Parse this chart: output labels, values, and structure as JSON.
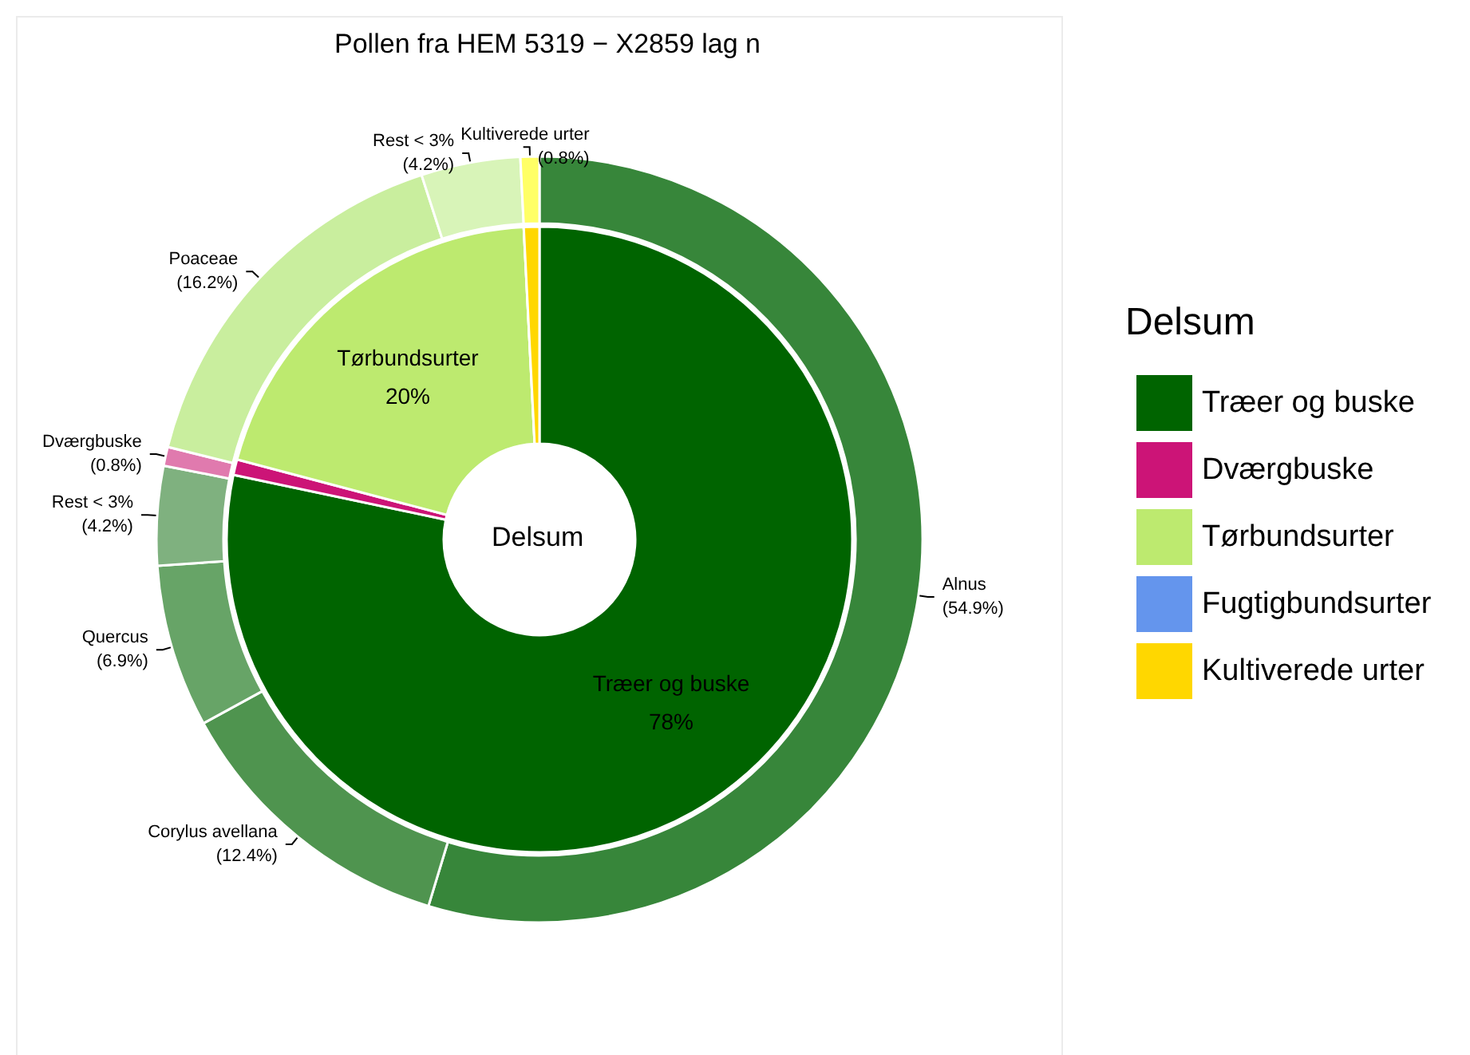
{
  "chart_data": [
    {
      "type": "donut",
      "title": "Pollen fra HEM 5319 − X2859 lag n",
      "legend_title": "Delsum",
      "legend": "right",
      "annotations": [
        "Delsum"
      ],
      "categories": [
        "Træer og buske",
        "Dværgbuske",
        "Tørbundsurter",
        "Fugtigbundsurter",
        "Kultiverede urter"
      ],
      "values": [
        78,
        0.8,
        20,
        0,
        0.8
      ],
      "colors": [
        "#006400",
        "#cc1477",
        "#bdea6f",
        "#6495ed",
        "#ffd700"
      ],
      "value_labels": [
        "78%",
        null,
        "20%",
        null,
        null
      ]
    },
    {
      "type": "donut",
      "categories": [
        "Alnus",
        "Corylus avellana",
        "Quercus",
        "Rest < 3%",
        "Dværgbuske",
        "Poaceae",
        "Rest < 3%",
        "Kultiverede urter"
      ],
      "values": [
        54.9,
        12.4,
        6.9,
        4.2,
        0.8,
        16.2,
        4.2,
        0.8
      ],
      "colors": [
        "#37863a",
        "#4f944f",
        "#67a467",
        "#7fb17f",
        "#e07aae",
        "#c9ee9e",
        "#d8f4b8",
        "#ffff66"
      ],
      "value_labels": [
        "(54.9%)",
        "(12.4%)",
        "(6.9%)",
        "(4.2%)",
        "(0.8%)",
        "(16.2%)",
        "(4.2%)",
        "(0.8%)"
      ]
    }
  ]
}
